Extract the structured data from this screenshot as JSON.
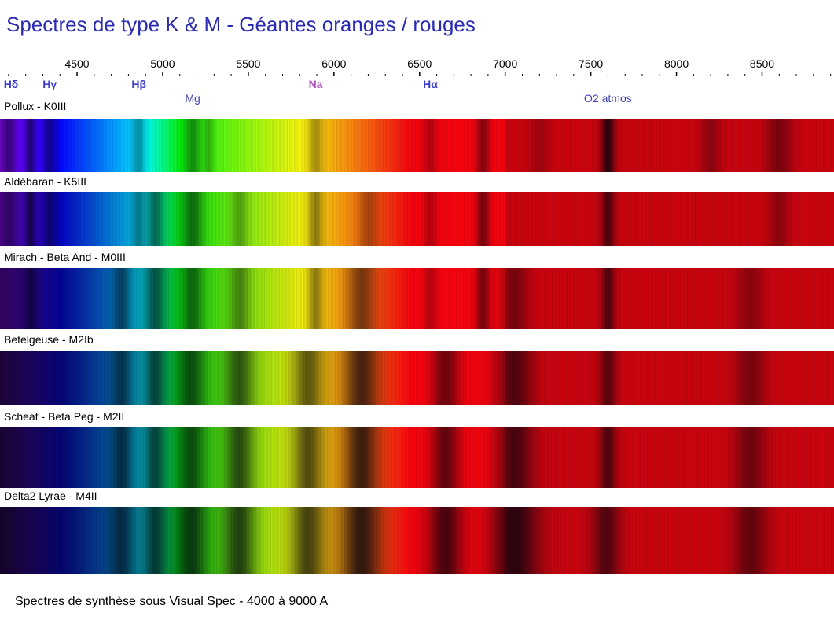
{
  "title": "Spectres de type K & M - Géantes oranges / rouges",
  "footer": "Spectres de synthèse sous Visual Spec - 4000 à 9000 A",
  "colors": {
    "title": "#2b2bb4",
    "balmer_label": "#3b3bd0",
    "na_label": "#b050c0",
    "o2_label": "#4040b0"
  },
  "chart_data": {
    "type": "spectrum",
    "x_unit": "Å",
    "xlim": [
      4050,
      8920
    ],
    "tick_labels": [
      4500,
      5000,
      5500,
      6000,
      6500,
      7000,
      7500,
      8000,
      8500
    ],
    "minor_tick_step": 100,
    "lines": [
      {
        "label": "Hδ",
        "wavelength": 4102,
        "color": "#3b3bd0",
        "row": 1
      },
      {
        "label": "Hγ",
        "wavelength": 4340,
        "color": "#3b3bd0",
        "row": 1
      },
      {
        "label": "Hβ",
        "wavelength": 4861,
        "color": "#3b3bd0",
        "row": 1
      },
      {
        "label": "Mg",
        "wavelength": 5175,
        "color": "#4040b0",
        "row": 2
      },
      {
        "label": "Na",
        "wavelength": 5893,
        "color": "#b050c0",
        "row": 1
      },
      {
        "label": "Hα",
        "wavelength": 6563,
        "color": "#3b3bd0",
        "row": 1
      },
      {
        "label": "O2 atmos",
        "wavelength": 7600,
        "color": "#4040b0",
        "row": 2
      }
    ],
    "spectra": [
      {
        "name": "Pollux - K0III",
        "blue_dim": 0.0,
        "bands": [
          [
            4102,
            0.45,
            40
          ],
          [
            4227,
            0.55,
            30
          ],
          [
            4340,
            0.45,
            40
          ],
          [
            4861,
            0.35,
            40
          ],
          [
            5175,
            0.4,
            50
          ],
          [
            5270,
            0.25,
            30
          ],
          [
            5893,
            0.3,
            40
          ],
          [
            6563,
            0.25,
            40
          ],
          [
            6870,
            0.45,
            40
          ],
          [
            7200,
            0.2,
            60
          ],
          [
            7600,
            0.8,
            40
          ],
          [
            8200,
            0.3,
            60
          ],
          [
            8600,
            0.4,
            80
          ]
        ]
      },
      {
        "name": "Aldébaran - K5III",
        "blue_dim": 0.35,
        "bands": [
          [
            4102,
            0.35,
            40
          ],
          [
            4227,
            0.6,
            30
          ],
          [
            4340,
            0.4,
            40
          ],
          [
            4861,
            0.35,
            40
          ],
          [
            4955,
            0.5,
            50
          ],
          [
            5175,
            0.5,
            60
          ],
          [
            5450,
            0.3,
            50
          ],
          [
            5893,
            0.4,
            40
          ],
          [
            6200,
            0.3,
            60
          ],
          [
            6563,
            0.25,
            40
          ],
          [
            6870,
            0.5,
            40
          ],
          [
            7600,
            0.6,
            40
          ],
          [
            8600,
            0.3,
            60
          ]
        ]
      },
      {
        "name": "Mirach - Beta And - M0III",
        "blue_dim": 0.6,
        "bands": [
          [
            4227,
            0.5,
            40
          ],
          [
            4761,
            0.5,
            50
          ],
          [
            4955,
            0.55,
            60
          ],
          [
            5175,
            0.5,
            60
          ],
          [
            5450,
            0.4,
            60
          ],
          [
            5893,
            0.4,
            40
          ],
          [
            6159,
            0.5,
            80
          ],
          [
            6563,
            0.25,
            40
          ],
          [
            6870,
            0.5,
            40
          ],
          [
            7054,
            0.4,
            80
          ],
          [
            7600,
            0.6,
            40
          ],
          [
            8432,
            0.3,
            80
          ]
        ]
      },
      {
        "name": "Betelgeuse - M2Ib",
        "blue_dim": 0.78,
        "bands": [
          [
            4761,
            0.55,
            60
          ],
          [
            4955,
            0.6,
            60
          ],
          [
            5167,
            0.6,
            80
          ],
          [
            5448,
            0.6,
            80
          ],
          [
            5847,
            0.6,
            90
          ],
          [
            6159,
            0.7,
            100
          ],
          [
            6651,
            0.55,
            80
          ],
          [
            7054,
            0.6,
            110
          ],
          [
            7600,
            0.55,
            50
          ],
          [
            8432,
            0.4,
            90
          ]
        ]
      },
      {
        "name": "Scheat - Beta Peg - M2II",
        "blue_dim": 0.8,
        "bands": [
          [
            4761,
            0.6,
            60
          ],
          [
            4955,
            0.6,
            60
          ],
          [
            5167,
            0.6,
            80
          ],
          [
            5448,
            0.65,
            80
          ],
          [
            5847,
            0.65,
            90
          ],
          [
            6159,
            0.75,
            100
          ],
          [
            6651,
            0.6,
            80
          ],
          [
            7054,
            0.65,
            110
          ],
          [
            7600,
            0.6,
            50
          ],
          [
            8432,
            0.45,
            90
          ]
        ]
      },
      {
        "name": "Delta2 Lyrae - M4II",
        "blue_dim": 0.85,
        "bands": [
          [
            4761,
            0.6,
            70
          ],
          [
            4955,
            0.65,
            70
          ],
          [
            5167,
            0.7,
            90
          ],
          [
            5448,
            0.7,
            90
          ],
          [
            5847,
            0.7,
            100
          ],
          [
            6159,
            0.8,
            120
          ],
          [
            6651,
            0.7,
            100
          ],
          [
            7054,
            0.8,
            140
          ],
          [
            7589,
            0.6,
            80
          ],
          [
            8432,
            0.5,
            100
          ]
        ]
      }
    ]
  }
}
